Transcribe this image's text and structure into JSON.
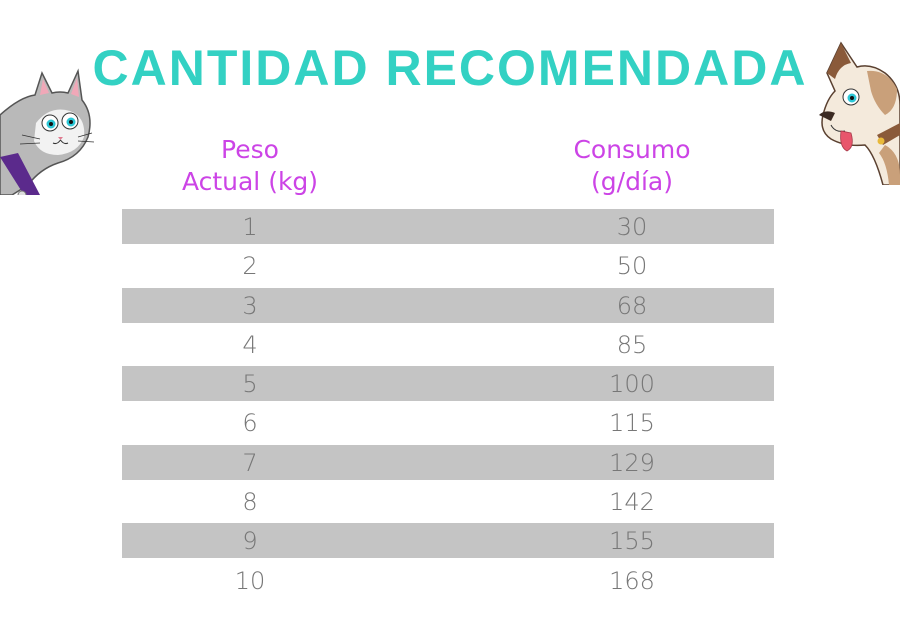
{
  "title": "CANTIDAD RECOMENDADA",
  "colors": {
    "title": "#33d1c3",
    "header": "#cc44e6",
    "row_shade": "#c4c4c4",
    "cell_text": "#777777"
  },
  "headers": {
    "peso_line1": "Peso",
    "peso_line2": "Actual (kg)",
    "consumo_line1": "Consumo",
    "consumo_line2": "(g/día)"
  },
  "rows": [
    {
      "peso": "1",
      "consumo": "30"
    },
    {
      "peso": "2",
      "consumo": "50"
    },
    {
      "peso": "3",
      "consumo": "68"
    },
    {
      "peso": "4",
      "consumo": "85"
    },
    {
      "peso": "5",
      "consumo": "100"
    },
    {
      "peso": "6",
      "consumo": "115"
    },
    {
      "peso": "7",
      "consumo": "129"
    },
    {
      "peso": "8",
      "consumo": "142"
    },
    {
      "peso": "9",
      "consumo": "155"
    },
    {
      "peso": "10",
      "consumo": "168"
    }
  ],
  "icons": {
    "left": "cat-mascot-icon",
    "right": "dog-mascot-icon"
  }
}
